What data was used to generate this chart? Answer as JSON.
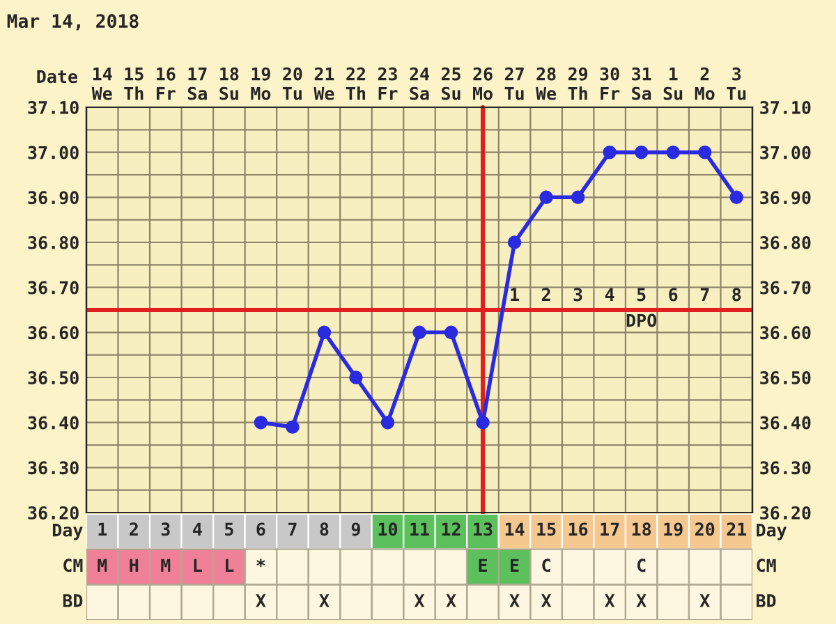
{
  "chart_data": [
    {
      "type": "line",
      "title": "Mar 14, 2018",
      "xlabel": "Date",
      "categories": [
        "14\nWe",
        "15\nTh",
        "16\nFr",
        "17\nSa",
        "18\nSu",
        "19\nMo",
        "20\nTu",
        "21\nWe",
        "22\nTh",
        "23\nFr",
        "24\nSa",
        "25\nSu",
        "26\nMo",
        "27\nTu",
        "28\nWe",
        "29\nTh",
        "30\nFr",
        "31\nSa",
        "1\nSu",
        "2\nMo",
        "3\nTu"
      ],
      "series": [
        {
          "color": "#2a2ae0",
          "values": [
            null,
            null,
            null,
            null,
            null,
            36.4,
            36.39,
            36.6,
            36.5,
            36.4,
            36.6,
            36.6,
            36.4,
            36.8,
            36.9,
            36.9,
            37.0,
            37.0,
            37.0,
            37.0,
            36.9
          ]
        }
      ],
      "marker": "circle",
      "line_style": "solid",
      "grid": true,
      "ylim": [
        36.2,
        37.1
      ],
      "yticks": [
        {
          "value": 36.2,
          "label": "36.20"
        },
        {
          "value": 36.25,
          "label": null
        },
        {
          "value": 36.3,
          "label": "36.30"
        },
        {
          "value": 36.35,
          "label": null
        },
        {
          "value": 36.4,
          "label": "36.40"
        },
        {
          "value": 36.45,
          "label": null
        },
        {
          "value": 36.5,
          "label": "36.50"
        },
        {
          "value": 36.55,
          "label": null
        },
        {
          "value": 36.6,
          "label": "36.60"
        },
        {
          "value": 36.7,
          "label": "36.70"
        },
        {
          "value": 36.75,
          "label": null
        },
        {
          "value": 36.8,
          "label": "36.80"
        },
        {
          "value": 36.85,
          "label": null
        },
        {
          "value": 36.9,
          "label": "36.90"
        },
        {
          "value": 36.95,
          "label": null
        },
        {
          "value": 37.0,
          "label": "37.00"
        },
        {
          "value": 37.05,
          "label": null
        },
        {
          "value": 37.1,
          "label": "37.10"
        }
      ],
      "y2lim": [
        36.2,
        37.1
      ],
      "y2ticks": [
        {
          "value": 36.2,
          "label": "36.20"
        },
        {
          "value": 36.3,
          "label": "36.30"
        },
        {
          "value": 36.4,
          "label": "36.40"
        },
        {
          "value": 36.5,
          "label": "36.50"
        },
        {
          "value": 36.6,
          "label": "36.60"
        },
        {
          "value": 36.7,
          "label": "36.70"
        },
        {
          "value": 36.8,
          "label": "36.80"
        },
        {
          "value": 36.9,
          "label": "36.90"
        },
        {
          "value": 37.0,
          "label": "37.00"
        },
        {
          "value": 37.1,
          "label": "37.10"
        }
      ],
      "ref_lines": [
        {
          "axis": "y",
          "value": 36.65,
          "color": "#e02020"
        },
        {
          "axis": "x",
          "value": "26\nMo",
          "color": "#e02020"
        }
      ],
      "annotations": [
        "1",
        "2",
        "3",
        "4",
        "5",
        "6",
        "7",
        "8",
        "DPO"
      ]
    },
    {
      "type": "heatmap",
      "xlabel": "Day",
      "categories": [
        "1",
        "2",
        "3",
        "4",
        "5",
        "6",
        "7",
        "8",
        "9",
        "10",
        "11",
        "12",
        "13",
        "14",
        "15",
        "16",
        "17",
        "18",
        "19",
        "20",
        "21"
      ],
      "y_categories": [
        "CM",
        "BD"
      ],
      "y2_categories": [
        "CM",
        "BD"
      ],
      "cells": [
        [
          null,
          null,
          null,
          null,
          null,
          null,
          null,
          null,
          null,
          null,
          null,
          null,
          null,
          null,
          null,
          null,
          null,
          null,
          null,
          null,
          null
        ],
        [
          null,
          null,
          null,
          null,
          null,
          null,
          null,
          null,
          null,
          null,
          null,
          null,
          null,
          null,
          null,
          null,
          null,
          null,
          null,
          null,
          null
        ]
      ],
      "cell_labels": [
        [
          "M",
          "H",
          "M",
          "L",
          "L",
          "*",
          null,
          null,
          null,
          null,
          null,
          null,
          "E",
          "E",
          "C",
          null,
          null,
          "C",
          null,
          null,
          null
        ],
        [
          null,
          null,
          null,
          null,
          null,
          "X",
          null,
          "X",
          null,
          null,
          "X",
          "X",
          null,
          "X",
          "X",
          null,
          "X",
          "X",
          null,
          "X",
          null
        ]
      ],
      "colors": [
        [
          "#c8c8c8",
          "#c8c8c8",
          "#c8c8c8",
          "#c8c8c8",
          "#c8c8c8",
          "#c8c8c8",
          "#c8c8c8",
          "#c8c8c8",
          "#c8c8c8",
          "#5cc05c",
          "#5cc05c",
          "#5cc05c",
          "#5cc05c",
          "#f5c890",
          "#f5c890",
          "#f5c890",
          "#f5c890",
          "#f5c890",
          "#f5c890",
          "#f5c890",
          "#f5c890"
        ],
        [
          "#f08098",
          "#f08098",
          "#f08098",
          "#f08098",
          "#f08098",
          null,
          null,
          null,
          null,
          null,
          null,
          null,
          "#5cc05c",
          "#5cc05c",
          null,
          null,
          null,
          null,
          null,
          null,
          null
        ],
        [
          null,
          null,
          null,
          null,
          null,
          null,
          null,
          null,
          null,
          null,
          null,
          null,
          null,
          null,
          null,
          null,
          null,
          null,
          null,
          null,
          null
        ]
      ]
    }
  ]
}
